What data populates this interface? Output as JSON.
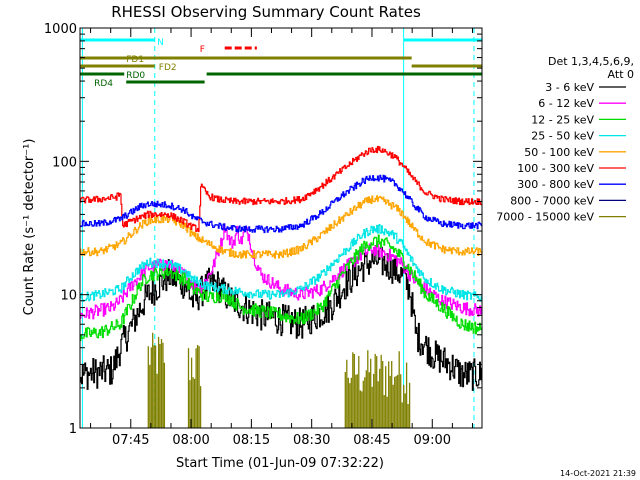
{
  "chart_data": {
    "type": "line",
    "title": "RHESSI Observing Summary Count Rates",
    "xlabel": "Start Time (01-Jun-09 07:32:22)",
    "ylabel": "Count Rate (s⁻¹ detector⁻¹)",
    "y_scale": "log",
    "ylim": [
      1,
      1000
    ],
    "xlim_minutes": [
      0,
      100
    ],
    "x_tick_labels": [
      "07:45",
      "08:00",
      "08:15",
      "08:30",
      "08:45",
      "09:00"
    ],
    "x_tick_minutes": [
      12.63,
      27.63,
      42.63,
      57.63,
      72.63,
      87.63
    ],
    "y_tick_labels": [
      "1",
      "10",
      "100",
      "1000"
    ],
    "y_tick_values": [
      1,
      10,
      100,
      1000
    ],
    "legend_header": [
      "Det 1,3,4,5,6,9,",
      "Att 0"
    ],
    "legend_position": "right",
    "timestamp": "14-Oct-2021 21:39",
    "series": [
      {
        "name": "3 - 6 keV",
        "color": "#000000",
        "noise": 0.12,
        "points": [
          [
            0,
            2.5
          ],
          [
            8,
            2.7
          ],
          [
            10,
            4
          ],
          [
            13,
            6
          ],
          [
            15,
            8
          ],
          [
            17,
            10
          ],
          [
            22,
            14
          ],
          [
            26,
            12
          ],
          [
            28,
            9
          ],
          [
            32,
            12
          ],
          [
            34,
            12
          ],
          [
            36,
            10
          ],
          [
            38,
            9
          ],
          [
            41,
            8
          ],
          [
            45,
            7
          ],
          [
            50,
            6.5
          ],
          [
            55,
            6
          ],
          [
            62,
            8
          ],
          [
            66,
            12
          ],
          [
            70,
            16
          ],
          [
            72.6,
            18
          ],
          [
            74,
            18
          ],
          [
            77,
            16.5
          ],
          [
            80,
            14
          ],
          [
            82,
            11
          ],
          [
            83.5,
            5
          ],
          [
            85,
            4.5
          ],
          [
            88,
            3.5
          ],
          [
            92,
            3
          ],
          [
            95,
            2.5
          ],
          [
            100,
            2.5
          ]
        ]
      },
      {
        "name": "6 - 12 keV",
        "color": "#ff00ff",
        "noise": 0.05,
        "points": [
          [
            0,
            7
          ],
          [
            8,
            8
          ],
          [
            10,
            9
          ],
          [
            13,
            12
          ],
          [
            15,
            14
          ],
          [
            17,
            16
          ],
          [
            22,
            17
          ],
          [
            26,
            14
          ],
          [
            28,
            12
          ],
          [
            30,
            11
          ],
          [
            33,
            16
          ],
          [
            34,
            20
          ],
          [
            35,
            24
          ],
          [
            36,
            33
          ],
          [
            37,
            26
          ],
          [
            38,
            24
          ],
          [
            39,
            30
          ],
          [
            40,
            25
          ],
          [
            41,
            30
          ],
          [
            42,
            28
          ],
          [
            43,
            20
          ],
          [
            45,
            14
          ],
          [
            50,
            11
          ],
          [
            55,
            10
          ],
          [
            60,
            11
          ],
          [
            65,
            15
          ],
          [
            70,
            20
          ],
          [
            72.6,
            22
          ],
          [
            75,
            21
          ],
          [
            78,
            19
          ],
          [
            80,
            17
          ],
          [
            83,
            13
          ],
          [
            86,
            11
          ],
          [
            90,
            9
          ],
          [
            95,
            8
          ],
          [
            100,
            7.5
          ]
        ]
      },
      {
        "name": "12 - 25 keV",
        "color": "#00dd00",
        "noise": 0.05,
        "points": [
          [
            0,
            5
          ],
          [
            5,
            5.2
          ],
          [
            10,
            6
          ],
          [
            13,
            9
          ],
          [
            15,
            12
          ],
          [
            17,
            14
          ],
          [
            22,
            15
          ],
          [
            26,
            13
          ],
          [
            28,
            11
          ],
          [
            32,
            9.5
          ],
          [
            36,
            10
          ],
          [
            40,
            8
          ],
          [
            45,
            7.5
          ],
          [
            50,
            7
          ],
          [
            55,
            6.5
          ],
          [
            60,
            8
          ],
          [
            65,
            14
          ],
          [
            70,
            22
          ],
          [
            72.6,
            25
          ],
          [
            75,
            25
          ],
          [
            78,
            22
          ],
          [
            80,
            19
          ],
          [
            83,
            14
          ],
          [
            86,
            10
          ],
          [
            90,
            8
          ],
          [
            95,
            6
          ],
          [
            100,
            5.5
          ]
        ]
      },
      {
        "name": "25 - 50 keV",
        "color": "#00e5e5",
        "noise": 0.035,
        "points": [
          [
            0,
            9.5
          ],
          [
            5,
            10
          ],
          [
            10,
            11
          ],
          [
            13,
            14
          ],
          [
            15,
            16
          ],
          [
            17,
            17.5
          ],
          [
            22,
            17
          ],
          [
            26,
            15
          ],
          [
            28,
            13
          ],
          [
            32,
            11.5
          ],
          [
            36,
            11
          ],
          [
            40,
            10.5
          ],
          [
            45,
            10
          ],
          [
            50,
            10
          ],
          [
            55,
            11
          ],
          [
            60,
            14
          ],
          [
            65,
            20
          ],
          [
            70,
            28
          ],
          [
            72.6,
            31
          ],
          [
            75,
            31
          ],
          [
            78,
            28
          ],
          [
            80,
            24
          ],
          [
            83,
            17
          ],
          [
            86,
            13
          ],
          [
            90,
            11
          ],
          [
            95,
            10
          ],
          [
            100,
            9.5
          ]
        ]
      },
      {
        "name": "50 - 100 keV",
        "color": "#ffa500",
        "noise": 0.03,
        "points": [
          [
            0,
            21
          ],
          [
            5,
            21
          ],
          [
            10,
            24
          ],
          [
            13,
            29
          ],
          [
            15,
            33
          ],
          [
            17,
            36
          ],
          [
            22,
            37
          ],
          [
            26,
            33
          ],
          [
            28,
            28
          ],
          [
            32,
            24
          ],
          [
            36,
            21
          ],
          [
            40,
            20
          ],
          [
            45,
            20
          ],
          [
            50,
            20
          ],
          [
            55,
            22
          ],
          [
            60,
            28
          ],
          [
            65,
            37
          ],
          [
            70,
            48
          ],
          [
            72.6,
            52
          ],
          [
            75,
            51
          ],
          [
            78,
            46
          ],
          [
            80,
            41
          ],
          [
            83,
            31
          ],
          [
            86,
            25
          ],
          [
            90,
            22
          ],
          [
            95,
            21
          ],
          [
            100,
            21
          ]
        ]
      },
      {
        "name": "100 - 300 keV",
        "color": "#ff0000",
        "noise": 0.025,
        "points": [
          [
            0,
            51
          ],
          [
            5,
            52
          ],
          [
            9,
            54
          ],
          [
            10,
            57
          ],
          [
            10.6,
            33
          ],
          [
            13,
            36
          ],
          [
            15,
            38
          ],
          [
            17,
            40
          ],
          [
            22,
            40
          ],
          [
            26,
            35
          ],
          [
            28,
            32
          ],
          [
            29.5,
            31
          ],
          [
            30,
            65
          ],
          [
            32,
            55
          ],
          [
            34,
            52
          ],
          [
            38,
            50
          ],
          [
            45,
            50
          ],
          [
            50,
            50
          ],
          [
            55,
            52
          ],
          [
            60,
            65
          ],
          [
            65,
            85
          ],
          [
            70,
            112
          ],
          [
            72.6,
            123
          ],
          [
            75,
            122
          ],
          [
            78,
            110
          ],
          [
            80,
            95
          ],
          [
            83,
            73
          ],
          [
            86,
            58
          ],
          [
            90,
            52
          ],
          [
            95,
            50
          ],
          [
            100,
            50
          ]
        ]
      },
      {
        "name": "300 - 800 keV",
        "color": "#0000ff",
        "noise": 0.025,
        "points": [
          [
            0,
            34
          ],
          [
            5,
            34
          ],
          [
            10,
            37
          ],
          [
            13,
            42
          ],
          [
            15,
            46
          ],
          [
            17,
            48
          ],
          [
            22,
            47
          ],
          [
            26,
            43
          ],
          [
            28,
            38
          ],
          [
            32,
            34
          ],
          [
            36,
            32
          ],
          [
            40,
            31
          ],
          [
            45,
            31
          ],
          [
            50,
            31
          ],
          [
            55,
            33
          ],
          [
            60,
            41
          ],
          [
            65,
            55
          ],
          [
            70,
            70
          ],
          [
            72.6,
            76
          ],
          [
            75,
            75
          ],
          [
            78,
            69
          ],
          [
            80,
            61
          ],
          [
            83,
            47
          ],
          [
            86,
            38
          ],
          [
            90,
            34
          ],
          [
            95,
            33
          ],
          [
            100,
            33
          ]
        ]
      },
      {
        "name": "800 - 7000 keV",
        "color": "#000080",
        "noise": 0,
        "points": []
      },
      {
        "name": "7000 - 15000 keV",
        "color": "#808000",
        "noise": 0,
        "points": [
          [
            0,
            1.4
          ],
          [
            100,
            1.4
          ]
        ]
      }
    ],
    "bars": [
      {
        "label": "N",
        "color": "#00ffff",
        "row_y": 40,
        "segments": [
          [
            0,
            18.6
          ],
          [
            80.5,
            100
          ]
        ]
      },
      {
        "label": "F",
        "color": "#ff0000",
        "row_y": 48,
        "segments": [
          [
            36,
            44
          ]
        ]
      },
      {
        "label": "FD1",
        "color": "#808000",
        "row_y": 58,
        "segments": [
          [
            0,
            82.5
          ]
        ]
      },
      {
        "label": "FD2",
        "color": "#808000",
        "row_y": 66,
        "segments": [
          [
            0,
            18.6
          ],
          [
            82.5,
            100
          ]
        ]
      },
      {
        "label": "RD0",
        "color": "#006400",
        "row_y": 74,
        "segments": [
          [
            0,
            11
          ],
          [
            31.5,
            100
          ]
        ]
      },
      {
        "label": "RD4",
        "color": "#006400",
        "row_y": 82,
        "segments": [
          [
            11.5,
            31
          ]
        ]
      }
    ],
    "vertical_lines": [
      {
        "x": 0.6,
        "style": "solid",
        "color": "#00ffff"
      },
      {
        "x": 18.6,
        "style": "dashed",
        "color": "#00ffff"
      },
      {
        "x": 80.5,
        "style": "solid",
        "color": "#00ffff"
      },
      {
        "x": 98,
        "style": "dashed",
        "color": "#00ffff"
      }
    ],
    "high_energy_bursts": [
      {
        "x0": 17,
        "x1": 21,
        "y": 4
      },
      {
        "x0": 27,
        "x1": 30,
        "y": 3.5
      },
      {
        "x0": 66,
        "x1": 82,
        "y": 3
      }
    ]
  }
}
